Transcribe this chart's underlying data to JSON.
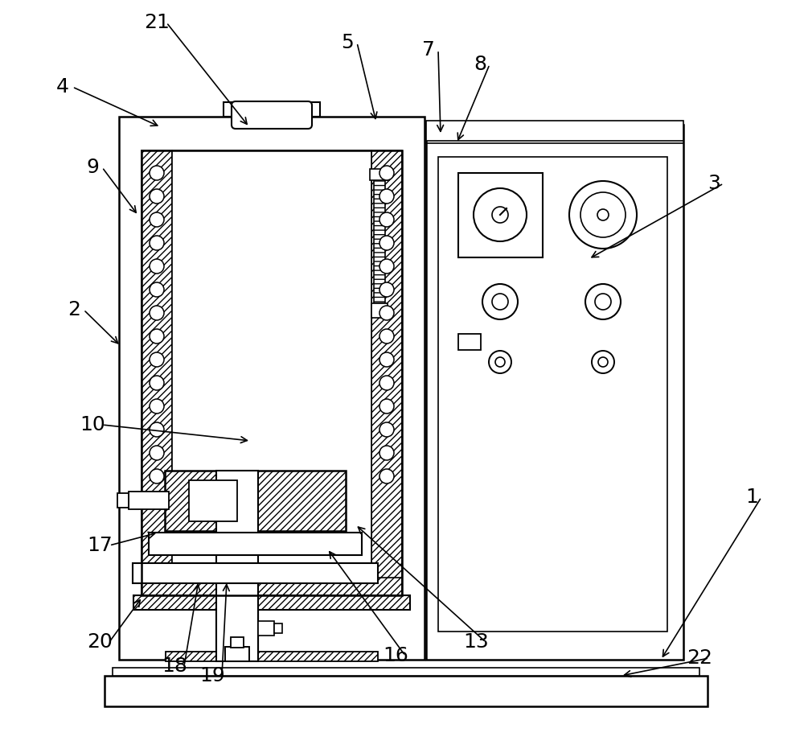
{
  "bg_color": "#ffffff",
  "line_color": "#000000",
  "figsize": [
    10.0,
    9.36
  ],
  "labels_data": [
    [
      "21",
      195,
      28,
      310,
      158
    ],
    [
      "4",
      78,
      108,
      200,
      158
    ],
    [
      "9",
      115,
      208,
      172,
      268
    ],
    [
      "2",
      92,
      385,
      150,
      430
    ],
    [
      "5",
      432,
      53,
      468,
      152
    ],
    [
      "7",
      533,
      62,
      548,
      168
    ],
    [
      "8",
      597,
      80,
      568,
      178
    ],
    [
      "3",
      888,
      228,
      732,
      322
    ],
    [
      "1",
      935,
      618,
      822,
      820
    ],
    [
      "10",
      115,
      528,
      312,
      548
    ],
    [
      "13",
      592,
      798,
      442,
      652
    ],
    [
      "16",
      492,
      815,
      407,
      682
    ],
    [
      "17",
      124,
      678,
      197,
      662
    ],
    [
      "18",
      217,
      828,
      247,
      722
    ],
    [
      "19",
      264,
      840,
      282,
      722
    ],
    [
      "20",
      124,
      798,
      177,
      742
    ],
    [
      "22",
      870,
      818,
      772,
      840
    ]
  ]
}
